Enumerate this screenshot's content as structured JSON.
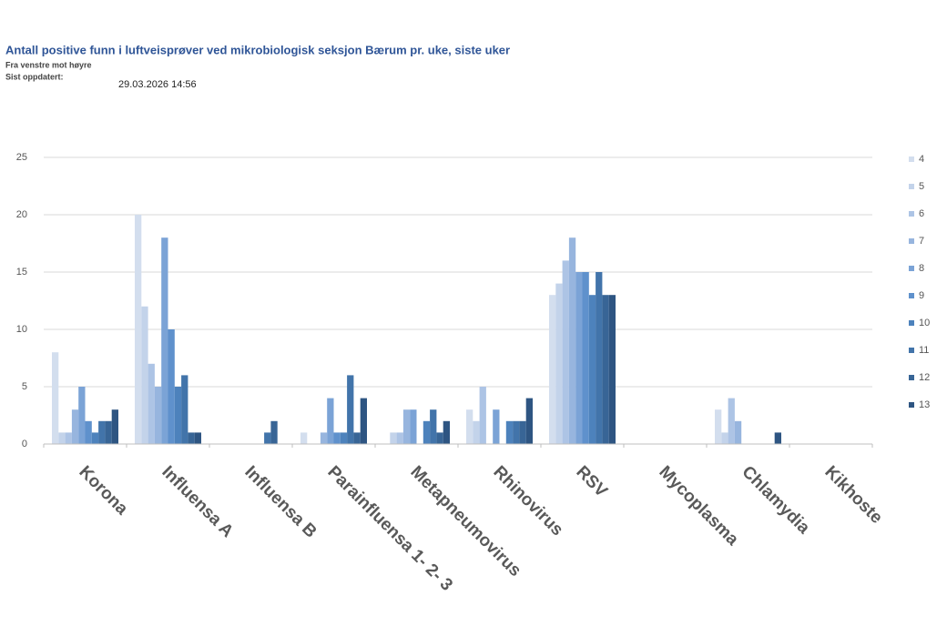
{
  "chart_data": {
    "type": "bar",
    "title": "Antall positive funn i luftveisprøver ved mikrobiologisk seksjon Bærum pr. uke, siste uker",
    "subtitle": "Fra venstre mot høyre",
    "updated_label": "Sist oppdatert:",
    "updated": "29.03.2026 14:56",
    "categories": [
      "Korona",
      "Influensa A",
      "Influensa B",
      "Parainfluensa 1- 2- 3",
      "Metapneumovirus",
      "Rhinovirus",
      "RSV",
      "Mycoplasma",
      "Chlamydia",
      "Kikhoste"
    ],
    "series": [
      {
        "name": "4",
        "color": "#d3deee",
        "values": [
          8,
          20,
          0,
          1,
          0,
          3,
          13,
          0,
          3,
          0
        ]
      },
      {
        "name": "5",
        "color": "#c3d3ea",
        "values": [
          1,
          12,
          0,
          0,
          1,
          2,
          14,
          0,
          1,
          0
        ]
      },
      {
        "name": "6",
        "color": "#adc4e5",
        "values": [
          1,
          7,
          0,
          0,
          1,
          5,
          16,
          0,
          4,
          0
        ]
      },
      {
        "name": "7",
        "color": "#97b5de",
        "values": [
          3,
          5,
          0,
          1,
          3,
          0,
          18,
          0,
          2,
          0
        ]
      },
      {
        "name": "8",
        "color": "#7ba3d6",
        "values": [
          5,
          18,
          0,
          4,
          3,
          3,
          15,
          0,
          0,
          0
        ]
      },
      {
        "name": "9",
        "color": "#5f91cc",
        "values": [
          2,
          10,
          0,
          1,
          0,
          0,
          15,
          0,
          0,
          0
        ]
      },
      {
        "name": "10",
        "color": "#4d82bc",
        "values": [
          1,
          5,
          0,
          1,
          2,
          2,
          13,
          0,
          0,
          0
        ]
      },
      {
        "name": "11",
        "color": "#4274aa",
        "values": [
          2,
          6,
          1,
          6,
          3,
          2,
          15,
          0,
          0,
          0
        ]
      },
      {
        "name": "12",
        "color": "#386596",
        "values": [
          2,
          1,
          2,
          1,
          1,
          2,
          13,
          0,
          0,
          0
        ]
      },
      {
        "name": "13",
        "color": "#2e5582",
        "values": [
          3,
          1,
          0,
          4,
          2,
          4,
          13,
          0,
          1,
          0
        ]
      }
    ],
    "ylim": [
      0,
      25
    ],
    "yticks": [
      0,
      5,
      10,
      15,
      20,
      25
    ],
    "grid": true,
    "legend": "right"
  }
}
